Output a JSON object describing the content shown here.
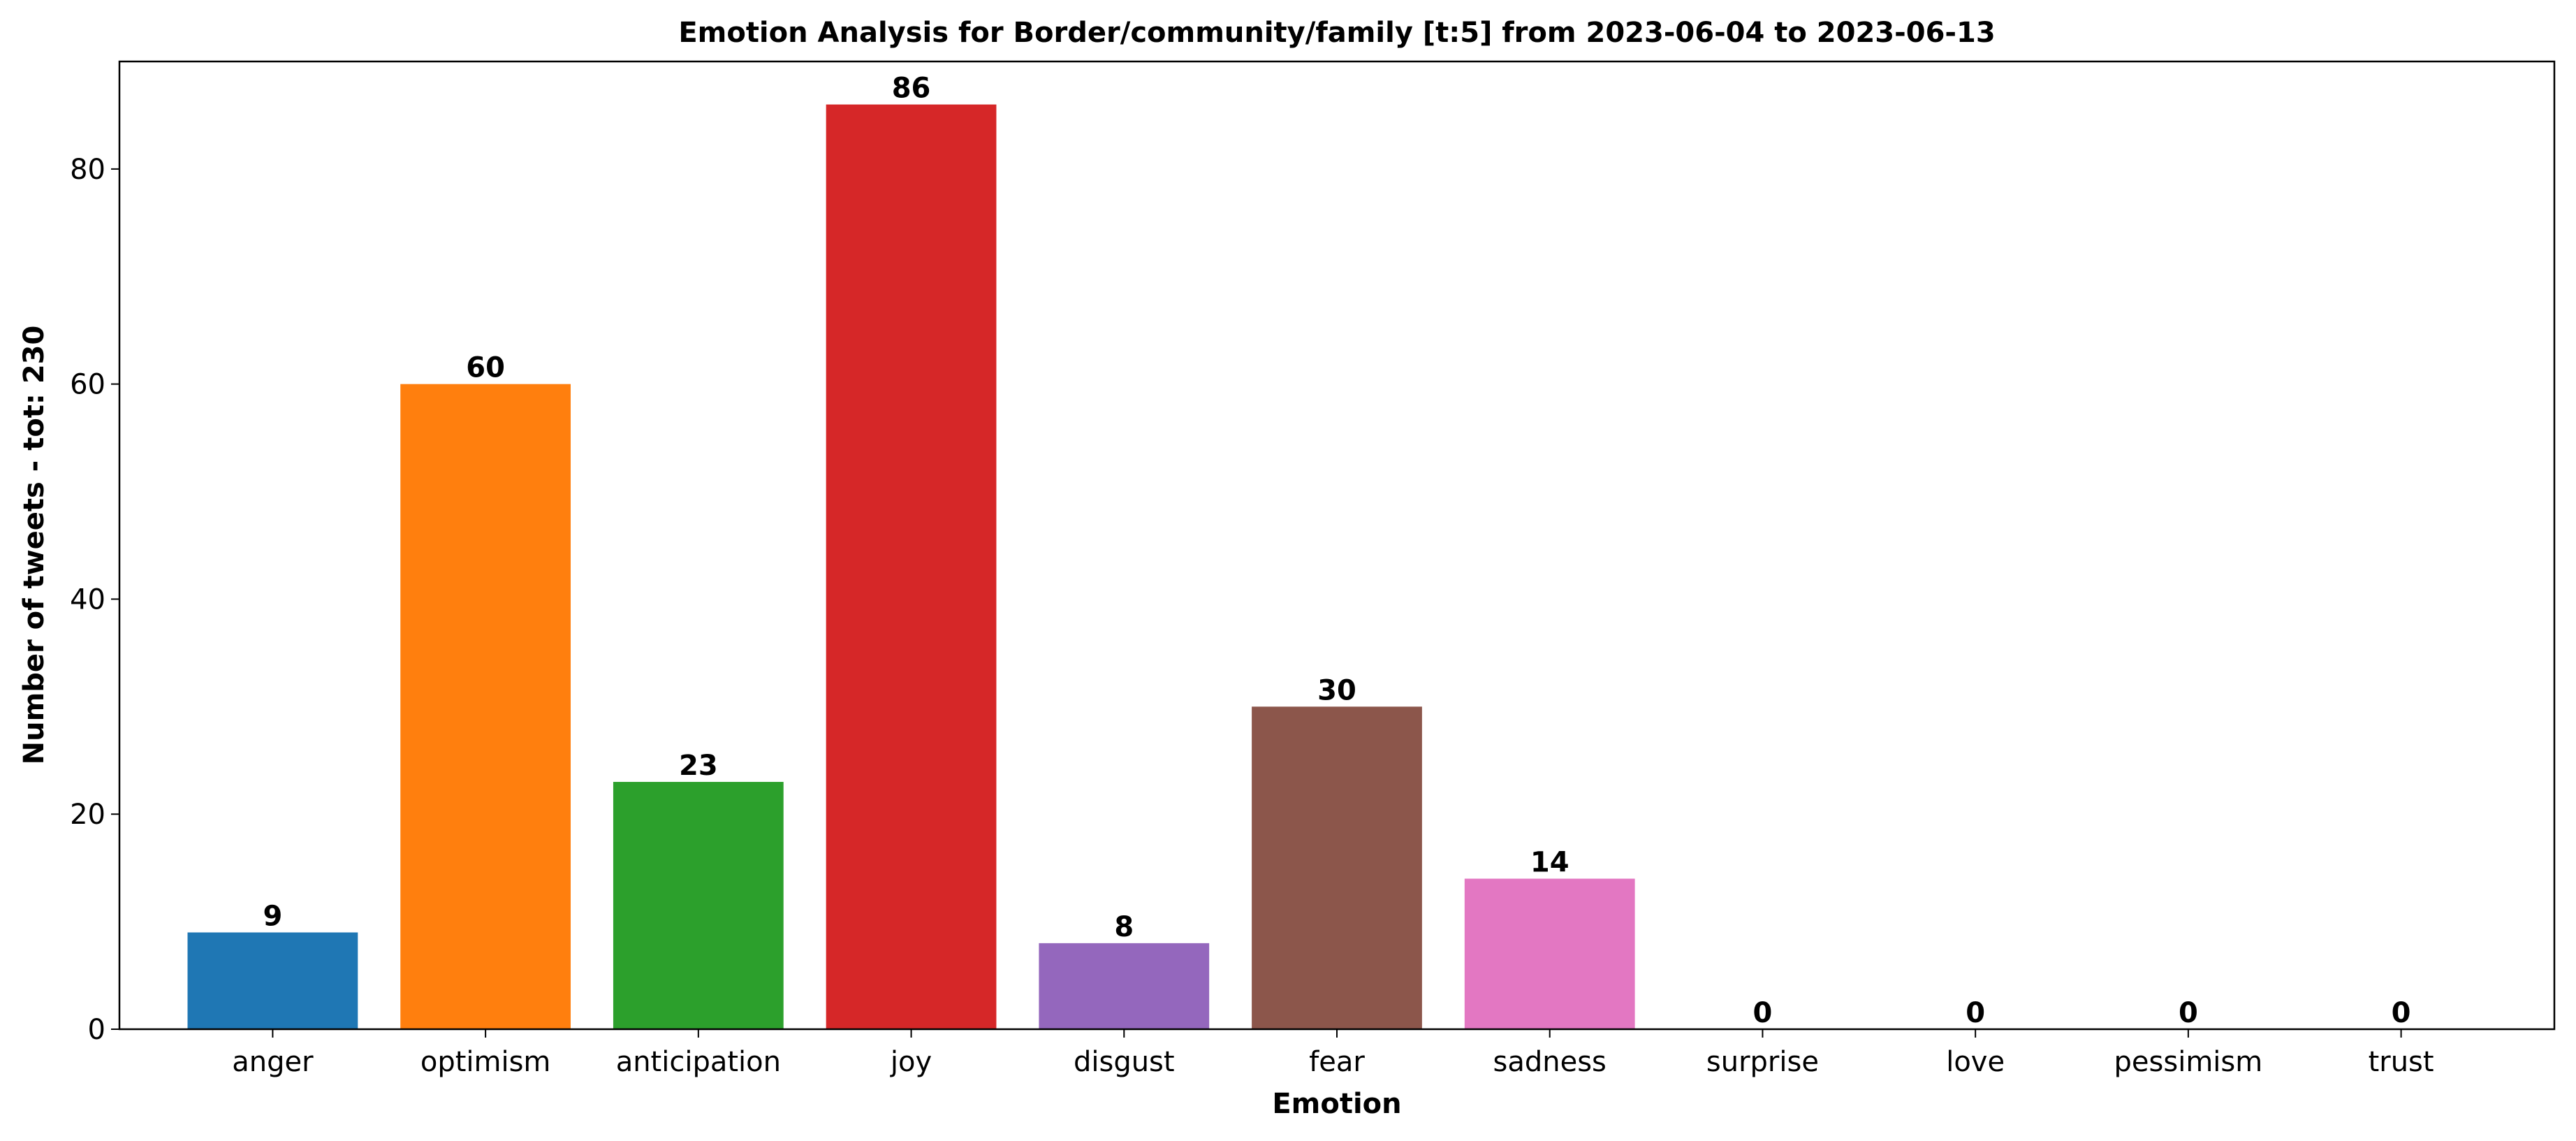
{
  "chart_data": {
    "type": "bar",
    "title": "Emotion Analysis for Border/community/family [t:5] from 2023-06-04 to 2023-06-13",
    "xlabel": "Emotion",
    "ylabel": "Number of tweets - tot: 230",
    "categories": [
      "anger",
      "optimism",
      "anticipation",
      "joy",
      "disgust",
      "fear",
      "sadness",
      "surprise",
      "love",
      "pessimism",
      "trust"
    ],
    "values": [
      9,
      60,
      23,
      86,
      8,
      30,
      14,
      0,
      0,
      0,
      0
    ],
    "colors": [
      "#1f77b4",
      "#ff7f0e",
      "#2ca02c",
      "#d62728",
      "#9467bd",
      "#8c564b",
      "#e377c2",
      "#7f7f7f",
      "#bcbd22",
      "#17becf",
      "#1f77b4"
    ],
    "ylim": [
      0,
      90
    ],
    "yticks": [
      0,
      20,
      40,
      60,
      80
    ],
    "grid": false,
    "legend": "none"
  }
}
